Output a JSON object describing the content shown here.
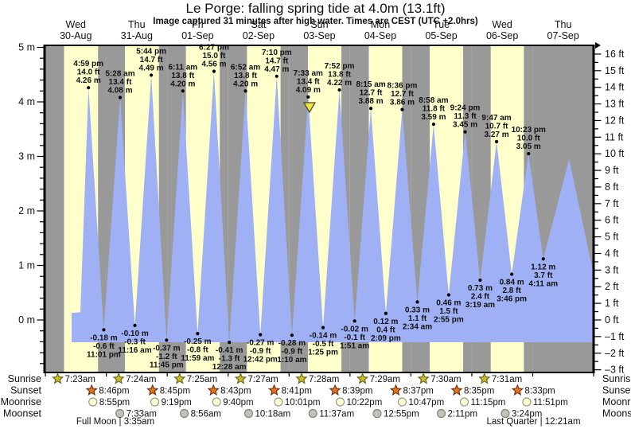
{
  "header": {
    "title": "Le Porge: falling  spring tide at 4.0m (13.1ft)",
    "subtitle": "Image captured 31 minutes after high water. Times are CEST (UTC +2.0hrs)"
  },
  "colors": {
    "day_band": "#ffffcc",
    "night_band": "#999999",
    "water": "#9fb0f5",
    "label_red": "#f74a3e",
    "text": "#111111",
    "marker_yellow": "#f5e14a",
    "sunrise_star": "#cbbb2a",
    "sunrise_star_edge": "#6b6b1a",
    "sunset_star": "#e2761c",
    "sunset_star_edge": "#7a3413",
    "moonrise_circle": "#ffffd6",
    "moonrise_circle_edge": "#9b9b85",
    "moonset_circle": "#c2c2b8",
    "moonset_circle_edge": "#85857a"
  },
  "chart_data": {
    "type": "area",
    "title": "Le Porge: falling  spring tide at 4.0m (13.1ft)",
    "x_axis": {
      "days": [
        {
          "name": "Wed",
          "date": "30-Aug"
        },
        {
          "name": "Thu",
          "date": "31-Aug"
        },
        {
          "name": "Fri",
          "date": "01-Sep"
        },
        {
          "name": "Sat",
          "date": "02-Sep"
        },
        {
          "name": "Sun",
          "date": "03-Sep"
        },
        {
          "name": "Mon",
          "date": "04-Sep"
        },
        {
          "name": "Tue",
          "date": "05-Sep"
        },
        {
          "name": "Wed",
          "date": "06-Sep"
        },
        {
          "name": "Thu",
          "date": "07-Sep"
        }
      ]
    },
    "y_axis_left": {
      "unit": "m",
      "tick_values": [
        5,
        4,
        3,
        2,
        1,
        0
      ],
      "label_suffix": " m"
    },
    "y_axis_right": {
      "unit": "ft",
      "tick_values": [
        16,
        15,
        14,
        13,
        12,
        11,
        10,
        9,
        8,
        7,
        6,
        5,
        4,
        3,
        2,
        1,
        0,
        -1,
        -2,
        -3
      ],
      "label_suffix": " ft"
    },
    "ylim_m": [
      -0.95,
      5.05
    ],
    "tides": [
      {
        "kind": "high",
        "day": 0,
        "time": "4:59 pm",
        "ft": "14.0 ft",
        "m": "4.26 m"
      },
      {
        "kind": "low",
        "day": 0,
        "time": "11:01 pm",
        "ft": "-0.6 ft",
        "m": "-0.18 m"
      },
      {
        "kind": "high",
        "day": 1,
        "time": "5:28 am",
        "ft": "13.4 ft",
        "m": "4.08 m"
      },
      {
        "kind": "low",
        "day": 1,
        "time": "11:16 am",
        "ft": "-0.3 ft",
        "m": "-0.10 m"
      },
      {
        "kind": "high",
        "day": 1,
        "time": "5:44 pm",
        "ft": "14.7 ft",
        "m": "4.49 m"
      },
      {
        "kind": "low",
        "day": 1,
        "time": "11:45 pm",
        "ft": "-1.2 ft",
        "m": "-0.37 m"
      },
      {
        "kind": "high",
        "day": 2,
        "time": "6:11 am",
        "ft": "13.8 ft",
        "m": "4.20 m"
      },
      {
        "kind": "low",
        "day": 2,
        "time": "11:59 am",
        "ft": "-0.8 ft",
        "m": "-0.25 m"
      },
      {
        "kind": "high",
        "day": 2,
        "time": "6:27 pm",
        "ft": "15.0 ft",
        "m": "4.56 m"
      },
      {
        "kind": "low",
        "day": 3,
        "time": "12:28 am",
        "ft": "-1.3 ft",
        "m": "-0.41 m"
      },
      {
        "kind": "high",
        "day": 3,
        "time": "6:52 am",
        "ft": "13.8 ft",
        "m": "4.20 m"
      },
      {
        "kind": "low",
        "day": 3,
        "time": "12:42 pm",
        "ft": "-0.9 ft",
        "m": "-0.27 m"
      },
      {
        "kind": "high",
        "day": 3,
        "time": "7:10 pm",
        "ft": "14.7 ft",
        "m": "4.47 m"
      },
      {
        "kind": "low",
        "day": 4,
        "time": "1:10 am",
        "ft": "-0.9 ft",
        "m": "-0.28 m"
      },
      {
        "kind": "high",
        "day": 4,
        "time": "7:33 am",
        "ft": "13.4 ft",
        "m": "4.09 m"
      },
      {
        "kind": "low",
        "day": 4,
        "time": "1:25 pm",
        "ft": "-0.5 ft",
        "m": "-0.14 m"
      },
      {
        "kind": "high",
        "day": 4,
        "time": "7:52 pm",
        "ft": "13.8 ft",
        "m": "4.22 m"
      },
      {
        "kind": "low",
        "day": 5,
        "time": "1:51 am",
        "ft": "-0.1 ft",
        "m": "-0.02 m"
      },
      {
        "kind": "high",
        "day": 5,
        "time": "8:15 am",
        "ft": "12.7 ft",
        "m": "3.88 m"
      },
      {
        "kind": "low",
        "day": 5,
        "time": "2:09 pm",
        "ft": "0.4 ft",
        "m": "0.12 m"
      },
      {
        "kind": "high",
        "day": 5,
        "time": "8:36 pm",
        "ft": "12.7 ft",
        "m": "3.86 m"
      },
      {
        "kind": "low",
        "day": 6,
        "time": "2:34 am",
        "ft": "1.1 ft",
        "m": "0.33 m"
      },
      {
        "kind": "high",
        "day": 6,
        "time": "8:58 am",
        "ft": "11.8 ft",
        "m": "3.59 m"
      },
      {
        "kind": "low",
        "day": 6,
        "time": "2:55 pm",
        "ft": "1.5 ft",
        "m": "0.46 m"
      },
      {
        "kind": "high",
        "day": 6,
        "time": "9:24 pm",
        "ft": "11.3 ft",
        "m": "3.45 m"
      },
      {
        "kind": "low",
        "day": 7,
        "time": "3:19 am",
        "ft": "2.4 ft",
        "m": "0.73 m"
      },
      {
        "kind": "high",
        "day": 7,
        "time": "9:47 am",
        "ft": "10.7 ft",
        "m": "3.27 m"
      },
      {
        "kind": "low",
        "day": 7,
        "time": "3:46 pm",
        "ft": "2.8 ft",
        "m": "0.84 m"
      },
      {
        "kind": "high",
        "day": 7,
        "time": "10:23 pm",
        "ft": "10.0 ft",
        "m": "3.05 m"
      },
      {
        "kind": "low",
        "day": 8,
        "time": "4:11 am",
        "ft": "3.7 ft",
        "m": "1.12 m"
      }
    ],
    "curve": {
      "start": {
        "t": 0.431,
        "m": 0.13
      },
      "start2": {
        "t": 0.575,
        "m": 0.14
      },
      "end_peak": {
        "t": 8.6,
        "m": 2.95
      },
      "end": {
        "t": 9.0,
        "m": 0.9
      },
      "baseline_m": -0.41
    },
    "current_marker": {
      "day": 4,
      "high_time": "7:33 am",
      "offset_minutes": 31
    }
  },
  "astro": {
    "rows": [
      {
        "name": "Sunrise",
        "icon": "sunrise-star",
        "events": [
          {
            "day": 0,
            "time": "7:23am"
          },
          {
            "day": 1,
            "time": "7:24am"
          },
          {
            "day": 2,
            "time": "7:25am"
          },
          {
            "day": 3,
            "time": "7:27am"
          },
          {
            "day": 4,
            "time": "7:28am"
          },
          {
            "day": 5,
            "time": "7:29am"
          },
          {
            "day": 6,
            "time": "7:30am"
          },
          {
            "day": 7,
            "time": "7:31am"
          }
        ]
      },
      {
        "name": "Sunset",
        "icon": "sunset-star",
        "events": [
          {
            "day": 0,
            "time": "8:46pm"
          },
          {
            "day": 1,
            "time": "8:45pm"
          },
          {
            "day": 2,
            "time": "8:43pm"
          },
          {
            "day": 3,
            "time": "8:41pm"
          },
          {
            "day": 4,
            "time": "8:39pm"
          },
          {
            "day": 5,
            "time": "8:37pm"
          },
          {
            "day": 6,
            "time": "8:35pm"
          },
          {
            "day": 7,
            "time": "8:33pm"
          }
        ]
      },
      {
        "name": "Moonrise",
        "icon": "moonrise-circle",
        "events": [
          {
            "day": 0,
            "time": "8:55pm"
          },
          {
            "day": 1,
            "time": "9:19pm"
          },
          {
            "day": 2,
            "time": "9:40pm"
          },
          {
            "day": 3,
            "time": "10:01pm"
          },
          {
            "day": 4,
            "time": "10:22pm"
          },
          {
            "day": 5,
            "time": "10:47pm"
          },
          {
            "day": 6,
            "time": "11:15pm"
          },
          {
            "day": 7,
            "time": "11:51pm"
          }
        ]
      },
      {
        "name": "Moonset",
        "icon": "moonset-circle",
        "events": [
          {
            "day": 1,
            "time": "7:33am"
          },
          {
            "day": 2,
            "time": "8:56am"
          },
          {
            "day": 3,
            "time": "10:18am"
          },
          {
            "day": 4,
            "time": "11:37am"
          },
          {
            "day": 5,
            "time": "12:55pm"
          },
          {
            "day": 6,
            "time": "2:11pm"
          },
          {
            "day": 7,
            "time": "3:24pm"
          }
        ]
      }
    ],
    "captions": [
      {
        "text": "Full Moon | 3:35am",
        "day": 1,
        "time": "3:35am"
      },
      {
        "text": "Last Quarter | 12:21am",
        "day": 8,
        "time": "12:21am"
      }
    ]
  }
}
